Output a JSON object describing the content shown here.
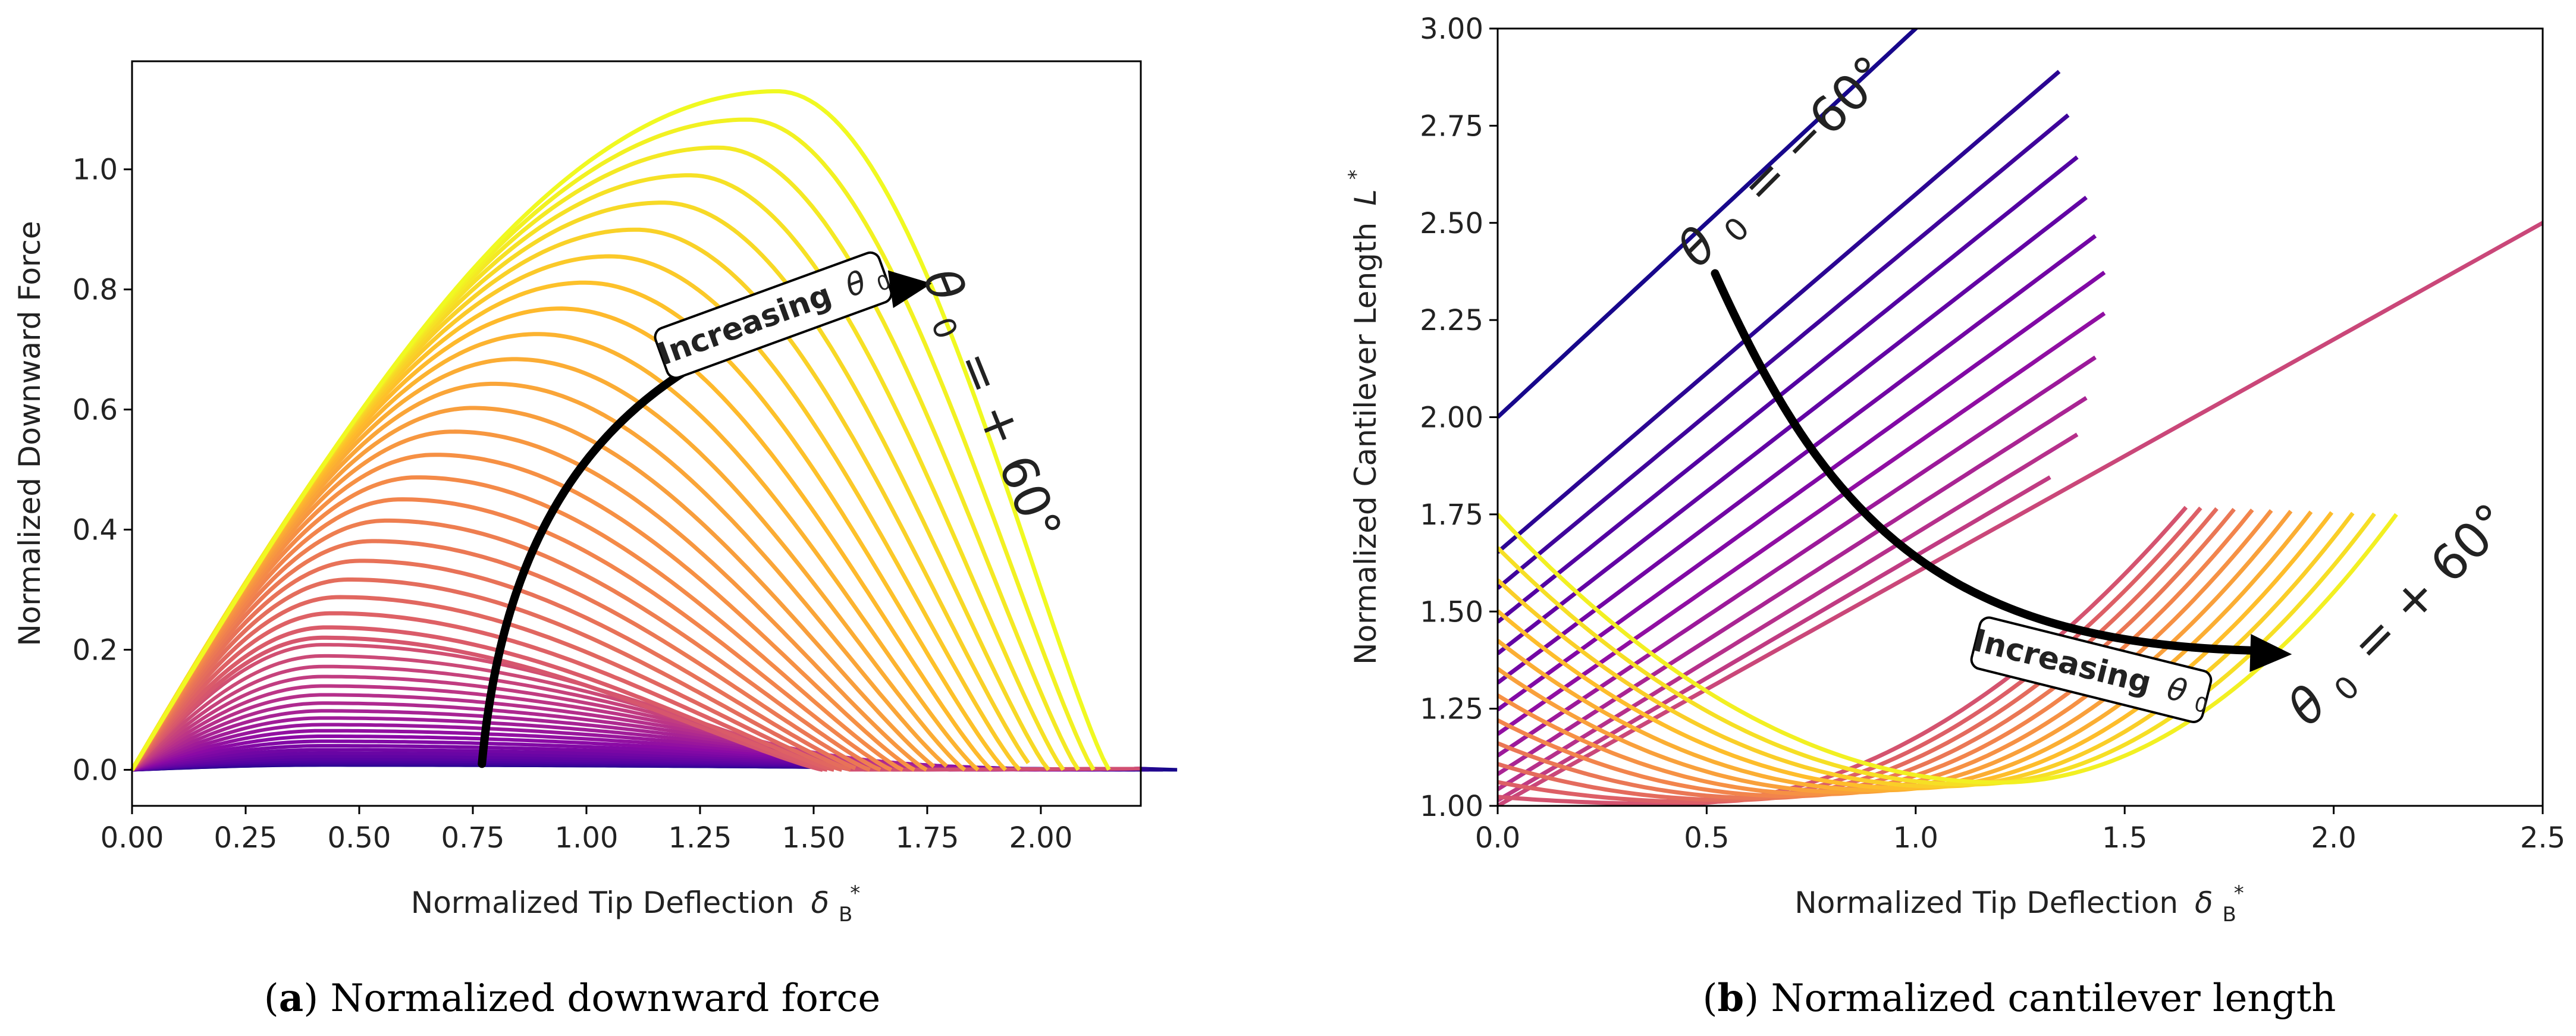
{
  "chart_data": [
    {
      "type": "line",
      "caption_label": "a",
      "caption": "Normalized downward force",
      "xlabel": "Normalized Tip Deflection",
      "xlabel_symbol": "δ",
      "xlabel_sub": "B",
      "xlabel_sup": "*",
      "ylabel": "Normalized Downward Force",
      "xlim": [
        0,
        2.22
      ],
      "ylim": [
        -0.06,
        1.18
      ],
      "xticks": [
        0,
        0.25,
        0.5,
        0.75,
        1.0,
        1.25,
        1.5,
        1.75,
        2.0
      ],
      "xtick_labels": [
        "0.00",
        "0.25",
        "0.50",
        "0.75",
        "1.00",
        "1.25",
        "1.50",
        "1.75",
        "2.00"
      ],
      "yticks": [
        0,
        0.2,
        0.4,
        0.6,
        0.8,
        1.0
      ],
      "ytick_labels": [
        "0.0",
        "0.2",
        "0.4",
        "0.6",
        "0.8",
        "1.0"
      ],
      "colormap": "plasma",
      "series_count": 49,
      "theta_range_deg": [
        -60,
        60
      ],
      "peak_y_at_plus60": 1.13,
      "peak_x_at_plus60": 1.42,
      "end_x_at_plus60": 2.15,
      "annotation_theta": "θ",
      "annotation_theta_sub": "0",
      "annotation_value": "= + 60°",
      "arrow_label": "Increasing",
      "arrow_label_symbol": "θ",
      "arrow_label_sub": "0"
    },
    {
      "type": "line",
      "caption_label": "b",
      "caption": "Normalized cantilever length",
      "xlabel": "Normalized Tip Deflection",
      "xlabel_symbol": "δ",
      "xlabel_sub": "B",
      "xlabel_sup": "*",
      "ylabel": "Normalized Cantilever Length",
      "ylabel_symbol": "L",
      "ylabel_sup": "*",
      "xlim": [
        0,
        2.5
      ],
      "ylim": [
        1.0,
        3.0
      ],
      "xticks": [
        0,
        0.5,
        1.0,
        1.5,
        2.0,
        2.5
      ],
      "xtick_labels": [
        "0.0",
        "0.5",
        "1.0",
        "1.5",
        "2.0",
        "2.5"
      ],
      "yticks": [
        1.0,
        1.25,
        1.5,
        1.75,
        2.0,
        2.25,
        2.5,
        2.75,
        3.0
      ],
      "ytick_labels": [
        "1.00",
        "1.25",
        "1.50",
        "1.75",
        "2.00",
        "2.25",
        "2.50",
        "2.75",
        "3.00"
      ],
      "colormap": "plasma",
      "series_count": 25,
      "theta_range_deg": [
        -60,
        60
      ],
      "annotation_top_theta": "θ",
      "annotation_top_sub": "0",
      "annotation_top_value": "= −60°",
      "annotation_bottom_theta": "θ",
      "annotation_bottom_sub": "0",
      "annotation_bottom_value": "= + 60°",
      "arrow_label": "Increasing",
      "arrow_label_symbol": "θ",
      "arrow_label_sub": "0"
    }
  ]
}
